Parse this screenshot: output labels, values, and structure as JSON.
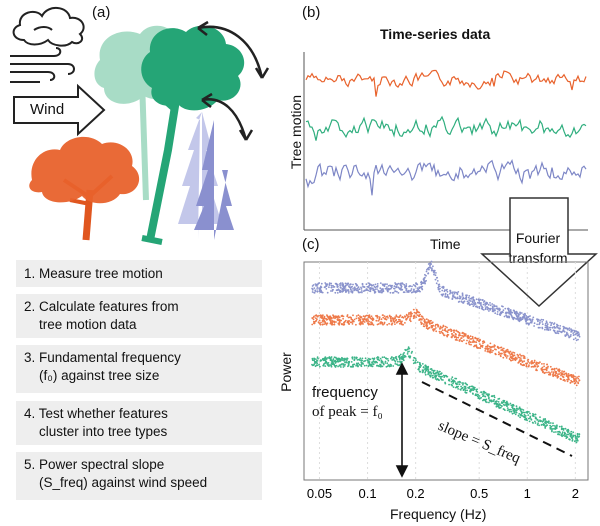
{
  "panel_a": {
    "label": "(a)",
    "wind_label": "Wind",
    "steps": [
      {
        "lines": [
          "1. Measure tree motion"
        ]
      },
      {
        "lines": [
          "2. Calculate features from",
          "tree motion data"
        ]
      },
      {
        "lines": [
          "3. Fundamental frequency",
          "(f₀) against tree size"
        ]
      },
      {
        "lines": [
          "4. Test whether features",
          "cluster into tree types"
        ]
      },
      {
        "lines": [
          "5. Power spectral slope",
          "(S_freq) against wind speed"
        ]
      }
    ]
  },
  "panel_b": {
    "label": "(b)",
    "title": "Time-series data",
    "ylabel": "Tree motion",
    "xlabel": "Time"
  },
  "transform": {
    "line1": "Fourier",
    "line2": "transform"
  },
  "panel_c": {
    "label": "(c)",
    "ylabel": "Power",
    "xlabel": "Frequency (Hz)",
    "peak_text_1": "frequency",
    "peak_text_2": "of peak = f₀",
    "slope_text": "slope = S_freq"
  },
  "chart_data": {
    "type": "scatter",
    "xlabel": "Frequency (Hz)",
    "ylabel": "Power",
    "x_scale": "log",
    "xlim": [
      0.04,
      2.4
    ],
    "x_ticks": [
      0.05,
      0.1,
      0.2,
      0.5,
      1,
      2
    ],
    "x_tick_labels": [
      "0.05",
      "0.1",
      "0.2",
      "0.5",
      "1",
      "2"
    ],
    "series": [
      {
        "color": "#8a93cc",
        "peak_hz": 0.25
      },
      {
        "color": "#ee7a4a",
        "peak_hz": 0.2
      },
      {
        "color": "#3cb488",
        "peak_hz": 0.18
      }
    ]
  },
  "colors": {
    "orange": "#e8622c",
    "green": "#2fae7e",
    "blue": "#7d86c6",
    "light_green": "#a8dcc6",
    "light_blue": "#b6bce3",
    "step_bg": "#eeeeee"
  }
}
